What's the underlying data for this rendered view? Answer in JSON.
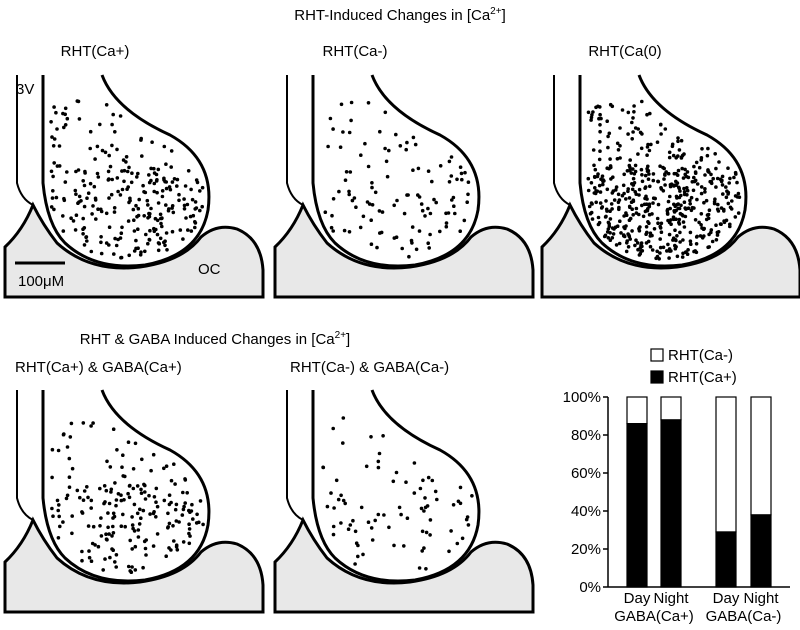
{
  "figure": {
    "title_top": [
      "RHT-Induced Changes in [Ca",
      "2+",
      "]"
    ],
    "title_bottom": [
      "RHT & GABA Induced Changes in [Ca",
      "2+",
      "]"
    ],
    "panels": [
      {
        "label": "RHT(Ca+)"
      },
      {
        "label": "RHT(Ca-)"
      },
      {
        "label": "RHT(Ca(0)"
      },
      {
        "label": "RHT(Ca+) & GABA(Ca+)"
      },
      {
        "label": "RHT(Ca-) & GABA(Ca-)"
      }
    ],
    "annotations": {
      "third_ventricle": "3V",
      "optic_chiasm": "OC",
      "scale_bar": "100μM"
    }
  },
  "chart_data": {
    "type": "stacked_bar",
    "categories": [
      "Day",
      "Night",
      "Day",
      "Night"
    ],
    "groups": [
      "GABA(Ca+)",
      "GABA(Ca-)"
    ],
    "series": [
      {
        "name": "RHT(Ca+)",
        "color": "#000000",
        "values": [
          86,
          88,
          29,
          38
        ]
      },
      {
        "name": "RHT(Ca-)",
        "color": "#ffffff",
        "values": [
          14,
          12,
          71,
          62
        ]
      }
    ],
    "ylim": [
      0,
      100
    ],
    "yticks": [
      {
        "value": 0,
        "label": "0%"
      },
      {
        "value": 20,
        "label": "20%"
      },
      {
        "value": 40,
        "label": "40%"
      },
      {
        "value": 60,
        "label": "60%"
      },
      {
        "value": 80,
        "label": "80%"
      },
      {
        "value": 100,
        "label": "100%"
      }
    ]
  }
}
